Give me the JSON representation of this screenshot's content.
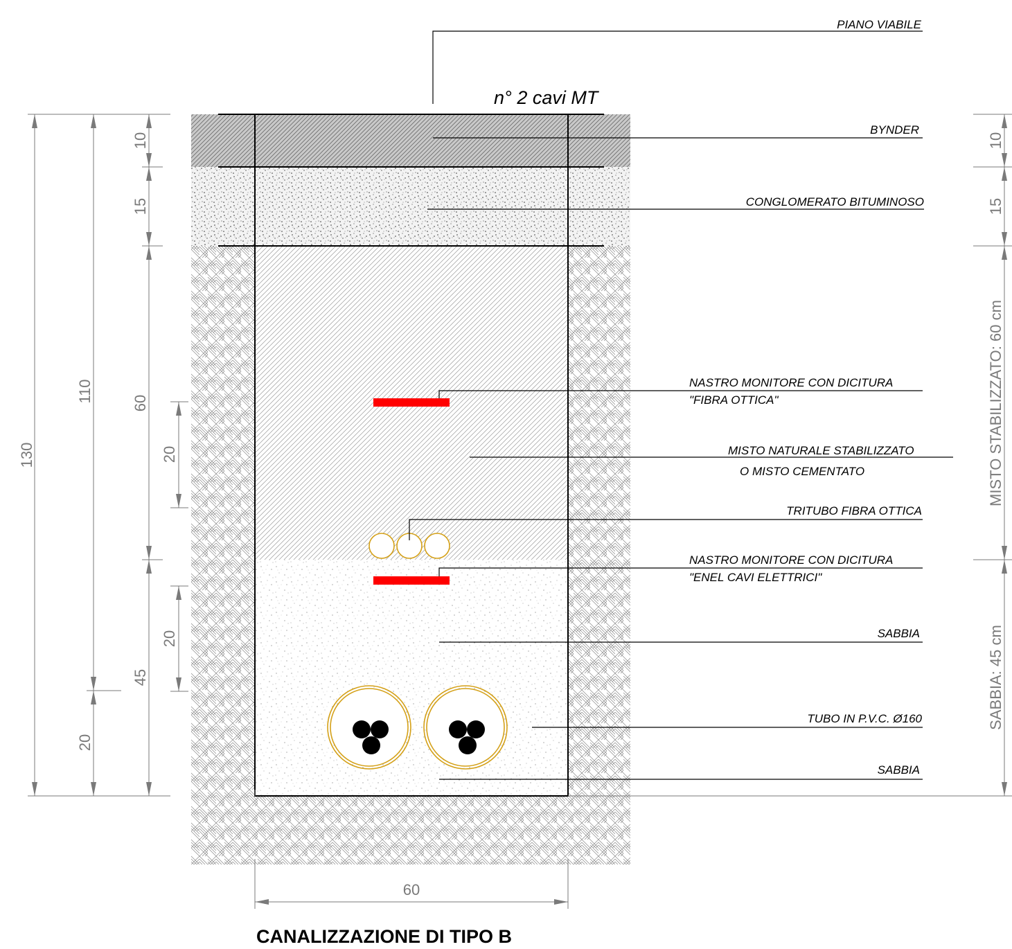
{
  "drawing": {
    "title": "CANALIZZAZIONE DI TIPO B",
    "cables_note": "n° 2 cavi MT",
    "labels": {
      "piano_viabile": "PIANO VIABILE",
      "bynder": "BYNDER",
      "conglomerato": "CONGLOMERATO BITUMINOSO",
      "nastro_fibra_l1": "NASTRO MONITORE CON DICITURA",
      "nastro_fibra_l2": "\"FIBRA OTTICA\"",
      "misto_l1": "MISTO NATURALE STABILIZZATO",
      "misto_l2": "O MISTO CEMENTATO",
      "tritubo": "TRITUBO FIBRA OTTICA",
      "nastro_enel_l1": "NASTRO MONITORE CON DICITURA",
      "nastro_enel_l2": "\"ENEL CAVI ELETTRICI\"",
      "sabbia_upper": "SABBIA",
      "tubo_pvc": "TUBO IN P.V.C. Ø160",
      "sabbia_lower": "SABBIA"
    },
    "dimensions": {
      "total": "130",
      "sub_total": "110",
      "bottom_left": "20",
      "bynder": "10",
      "conglomerato": "15",
      "misto": "60",
      "sabbia": "45",
      "tape_fibra": "20",
      "tape_enel": "20",
      "width": "60",
      "right_bynder": "10",
      "right_conglomerato": "15",
      "right_misto": "MISTO STABILIZZATO: 60 cm",
      "right_sabbia": "SABBIA: 45 cm"
    },
    "colors": {
      "warning_tape": "#ff0000",
      "duct_outline": "#d4a017",
      "cable": "#000000",
      "dimension": "#7a7a7a"
    }
  }
}
